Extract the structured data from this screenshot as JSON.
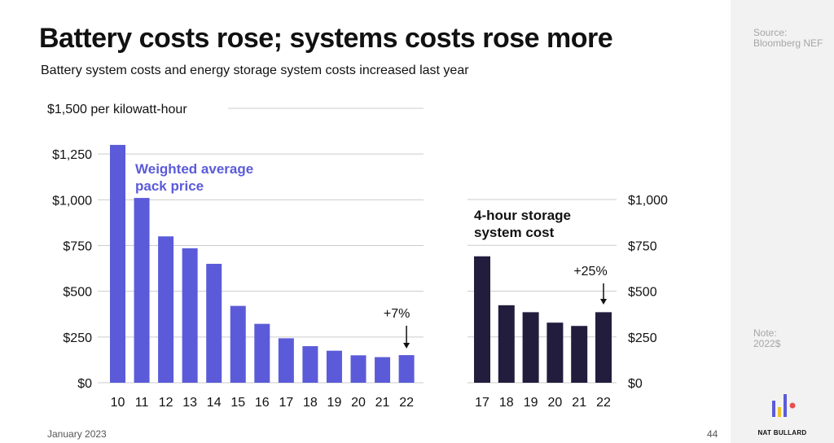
{
  "slide": {
    "title": "Battery costs rose; systems costs rose more",
    "subtitle": "Battery system costs and energy storage system costs increased last year",
    "footer_date": "January 2023",
    "page_number": "44",
    "source_label": "Source:",
    "source_name": "Bloomberg NEF",
    "note_label": "Note:",
    "note_text": "2022$",
    "logo_text": "NAT BULLARD"
  },
  "colors": {
    "pack": "#5b5bd9",
    "system": "#221d3d",
    "grid": "#cccccc",
    "logo_blue": "#5b5bd9",
    "logo_yellow": "#f2c12e",
    "logo_red": "#e8504f"
  },
  "chart_data": [
    {
      "type": "bar",
      "name": "pack",
      "categories": [
        "10",
        "11",
        "12",
        "13",
        "14",
        "15",
        "16",
        "17",
        "18",
        "19",
        "20",
        "21",
        "22"
      ],
      "values": [
        1300,
        1010,
        800,
        735,
        650,
        420,
        322,
        243,
        200,
        175,
        150,
        140,
        151
      ],
      "series_label_line1": "Weighted average",
      "series_label_line2": "pack price",
      "ylim": [
        0,
        1500
      ],
      "yticks": [
        0,
        250,
        500,
        750,
        1000,
        1250
      ],
      "yticklabels": [
        "$0",
        "$250",
        "$500",
        "$750",
        "$1,000",
        "$1,250"
      ],
      "top_label": "$1,500 per kilowatt-hour",
      "annotation": "+7%",
      "grid": true
    },
    {
      "type": "bar",
      "name": "system",
      "categories": [
        "17",
        "18",
        "19",
        "20",
        "21",
        "22"
      ],
      "values": [
        690,
        423,
        385,
        328,
        310,
        385
      ],
      "series_label_line1": "4-hour storage",
      "series_label_line2": "system cost",
      "ylim": [
        0,
        1000
      ],
      "yticks": [
        0,
        250,
        500,
        750,
        1000
      ],
      "yticklabels": [
        "$0",
        "$250",
        "$500",
        "$750",
        "$1,000"
      ],
      "annotation": "+25%",
      "grid": true
    }
  ]
}
